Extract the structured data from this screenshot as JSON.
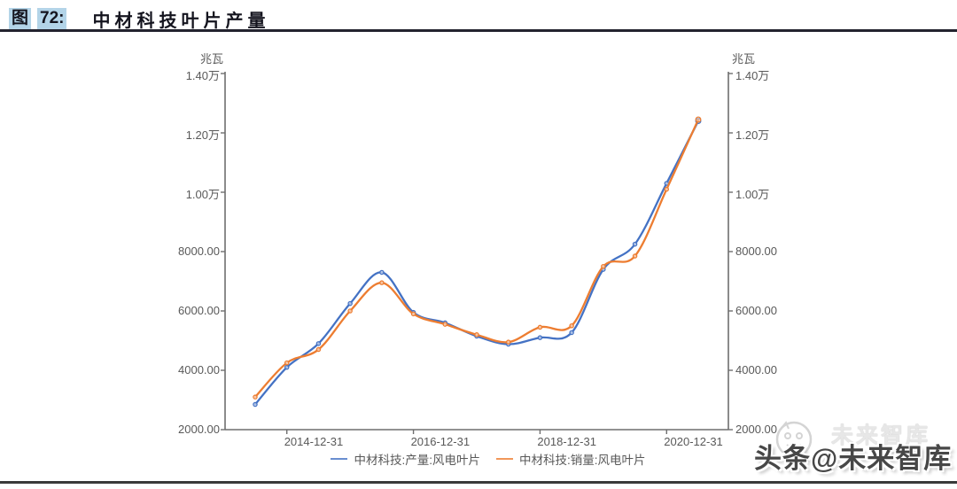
{
  "figure": {
    "label": "图",
    "number": "72:",
    "title": "中材科技叶片产量"
  },
  "chart_data": {
    "type": "line",
    "title": "中材科技叶片产量",
    "y_unit_left": "兆瓦",
    "y_unit_right": "兆瓦",
    "ylim": [
      2000,
      14000
    ],
    "grid": false,
    "legend_position": "bottom",
    "x": [
      "2014-06-30",
      "2014-12-31",
      "2015-06-30",
      "2015-12-31",
      "2016-06-30",
      "2016-12-31",
      "2017-06-30",
      "2017-12-31",
      "2018-06-30",
      "2018-12-31",
      "2019-06-30",
      "2019-12-31",
      "2020-06-30",
      "2020-12-31",
      "2021-06-30"
    ],
    "x_ticks": [
      {
        "label": "2014-12-31",
        "index": 1
      },
      {
        "label": "2016-12-31",
        "index": 5
      },
      {
        "label": "2018-12-31",
        "index": 9
      },
      {
        "label": "2020-12-31",
        "index": 13
      }
    ],
    "y_ticks": [
      {
        "value": 14000,
        "label": "1.40万"
      },
      {
        "value": 12000,
        "label": "1.20万"
      },
      {
        "value": 10000,
        "label": "1.00万"
      },
      {
        "value": 8000,
        "label": "8000.00"
      },
      {
        "value": 6000,
        "label": "6000.00"
      },
      {
        "value": 4000,
        "label": "4000.00"
      },
      {
        "value": 2000,
        "label": "2000.00"
      }
    ],
    "series": [
      {
        "name": "中材科技:产量:风电叶片",
        "color": "#4472c4",
        "values": [
          2850,
          4100,
          4900,
          6250,
          7300,
          5950,
          5600,
          5150,
          4880,
          5100,
          5270,
          7400,
          8250,
          10300,
          12400
        ]
      },
      {
        "name": "中材科技:销量:风电叶片",
        "color": "#ed7d31",
        "values": [
          3100,
          4250,
          4700,
          6000,
          6950,
          5900,
          5550,
          5200,
          4950,
          5450,
          5500,
          7500,
          7850,
          10100,
          12450
        ]
      }
    ]
  },
  "watermark": {
    "ghost_text": "未来智库",
    "main_text": "头条@未来智库"
  },
  "colors": {
    "title_highlight": "#b3d4e8",
    "title_text": "#14141e",
    "axis": "#6e6e6e",
    "tick_text": "#595959",
    "top_rule": "#23232f",
    "bottom_rule": "#3a3a3a"
  }
}
